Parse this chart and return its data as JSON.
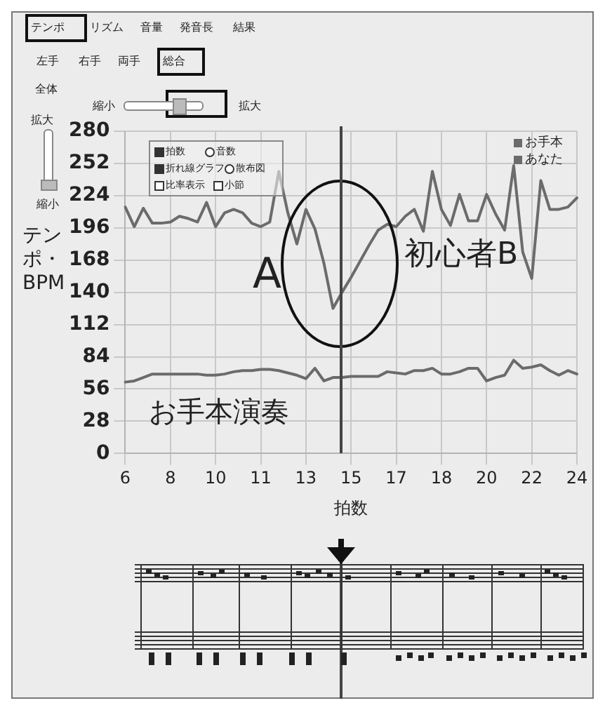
{
  "chart_data": {
    "type": "line",
    "xlabel": "拍数",
    "ylabel": "テンポ・BPM",
    "categories": [
      "6",
      null,
      null,
      null,
      null,
      "8",
      null,
      null,
      null,
      null,
      "10",
      null,
      null,
      null,
      null,
      "11",
      null,
      null,
      null,
      null,
      "13",
      null,
      null,
      null,
      null,
      "15",
      null,
      null,
      null,
      null,
      "17",
      null,
      null,
      null,
      null,
      "18",
      null,
      null,
      null,
      null,
      "20",
      null,
      null,
      null,
      null,
      "22",
      null,
      null,
      null,
      null,
      "24"
    ],
    "series": [
      {
        "name": "お手本",
        "color": "#6b6b6b",
        "values": [
          62,
          63,
          66,
          69,
          69,
          69,
          69,
          69,
          69,
          68,
          68,
          69,
          71,
          72,
          72,
          73,
          73,
          72,
          70,
          68,
          65,
          74,
          63,
          66,
          66,
          67,
          67,
          67,
          67,
          71,
          70,
          69,
          72,
          72,
          74,
          69,
          69,
          71,
          74,
          74,
          63,
          66,
          68,
          81,
          74,
          75,
          77,
          72,
          68,
          72,
          69
        ]
      },
      {
        "name": "あなた",
        "color": "#6b6b6b",
        "values": [
          214,
          197,
          213,
          200,
          200,
          201,
          206,
          204,
          201,
          218,
          197,
          209,
          212,
          209,
          200,
          197,
          201,
          245,
          209,
          182,
          212,
          195,
          165,
          126,
          140,
          153,
          167,
          181,
          194,
          199,
          197,
          206,
          212,
          193,
          245,
          212,
          198,
          225,
          202,
          202,
          225,
          208,
          194,
          250,
          175,
          152,
          237,
          212,
          212,
          214,
          222
        ]
      }
    ],
    "ylim": [
      0,
      280
    ],
    "yticks": [
      0,
      28,
      56,
      84,
      112,
      140,
      168,
      196,
      224,
      252,
      280
    ],
    "grid": true,
    "legend": "top right",
    "marker": "none",
    "annotations": [
      "テンポ",
      "リズム",
      "音量",
      "発音長",
      "結果",
      "左手",
      "右手",
      "両手",
      "総合",
      "全体",
      "縮小",
      "拡大",
      "拡大",
      "縮小",
      "拍数",
      "音数",
      "折れ線グラフ",
      "散布図",
      "比率表示",
      "小節",
      "A",
      "初心者B",
      "お手本演奏"
    ]
  }
}
